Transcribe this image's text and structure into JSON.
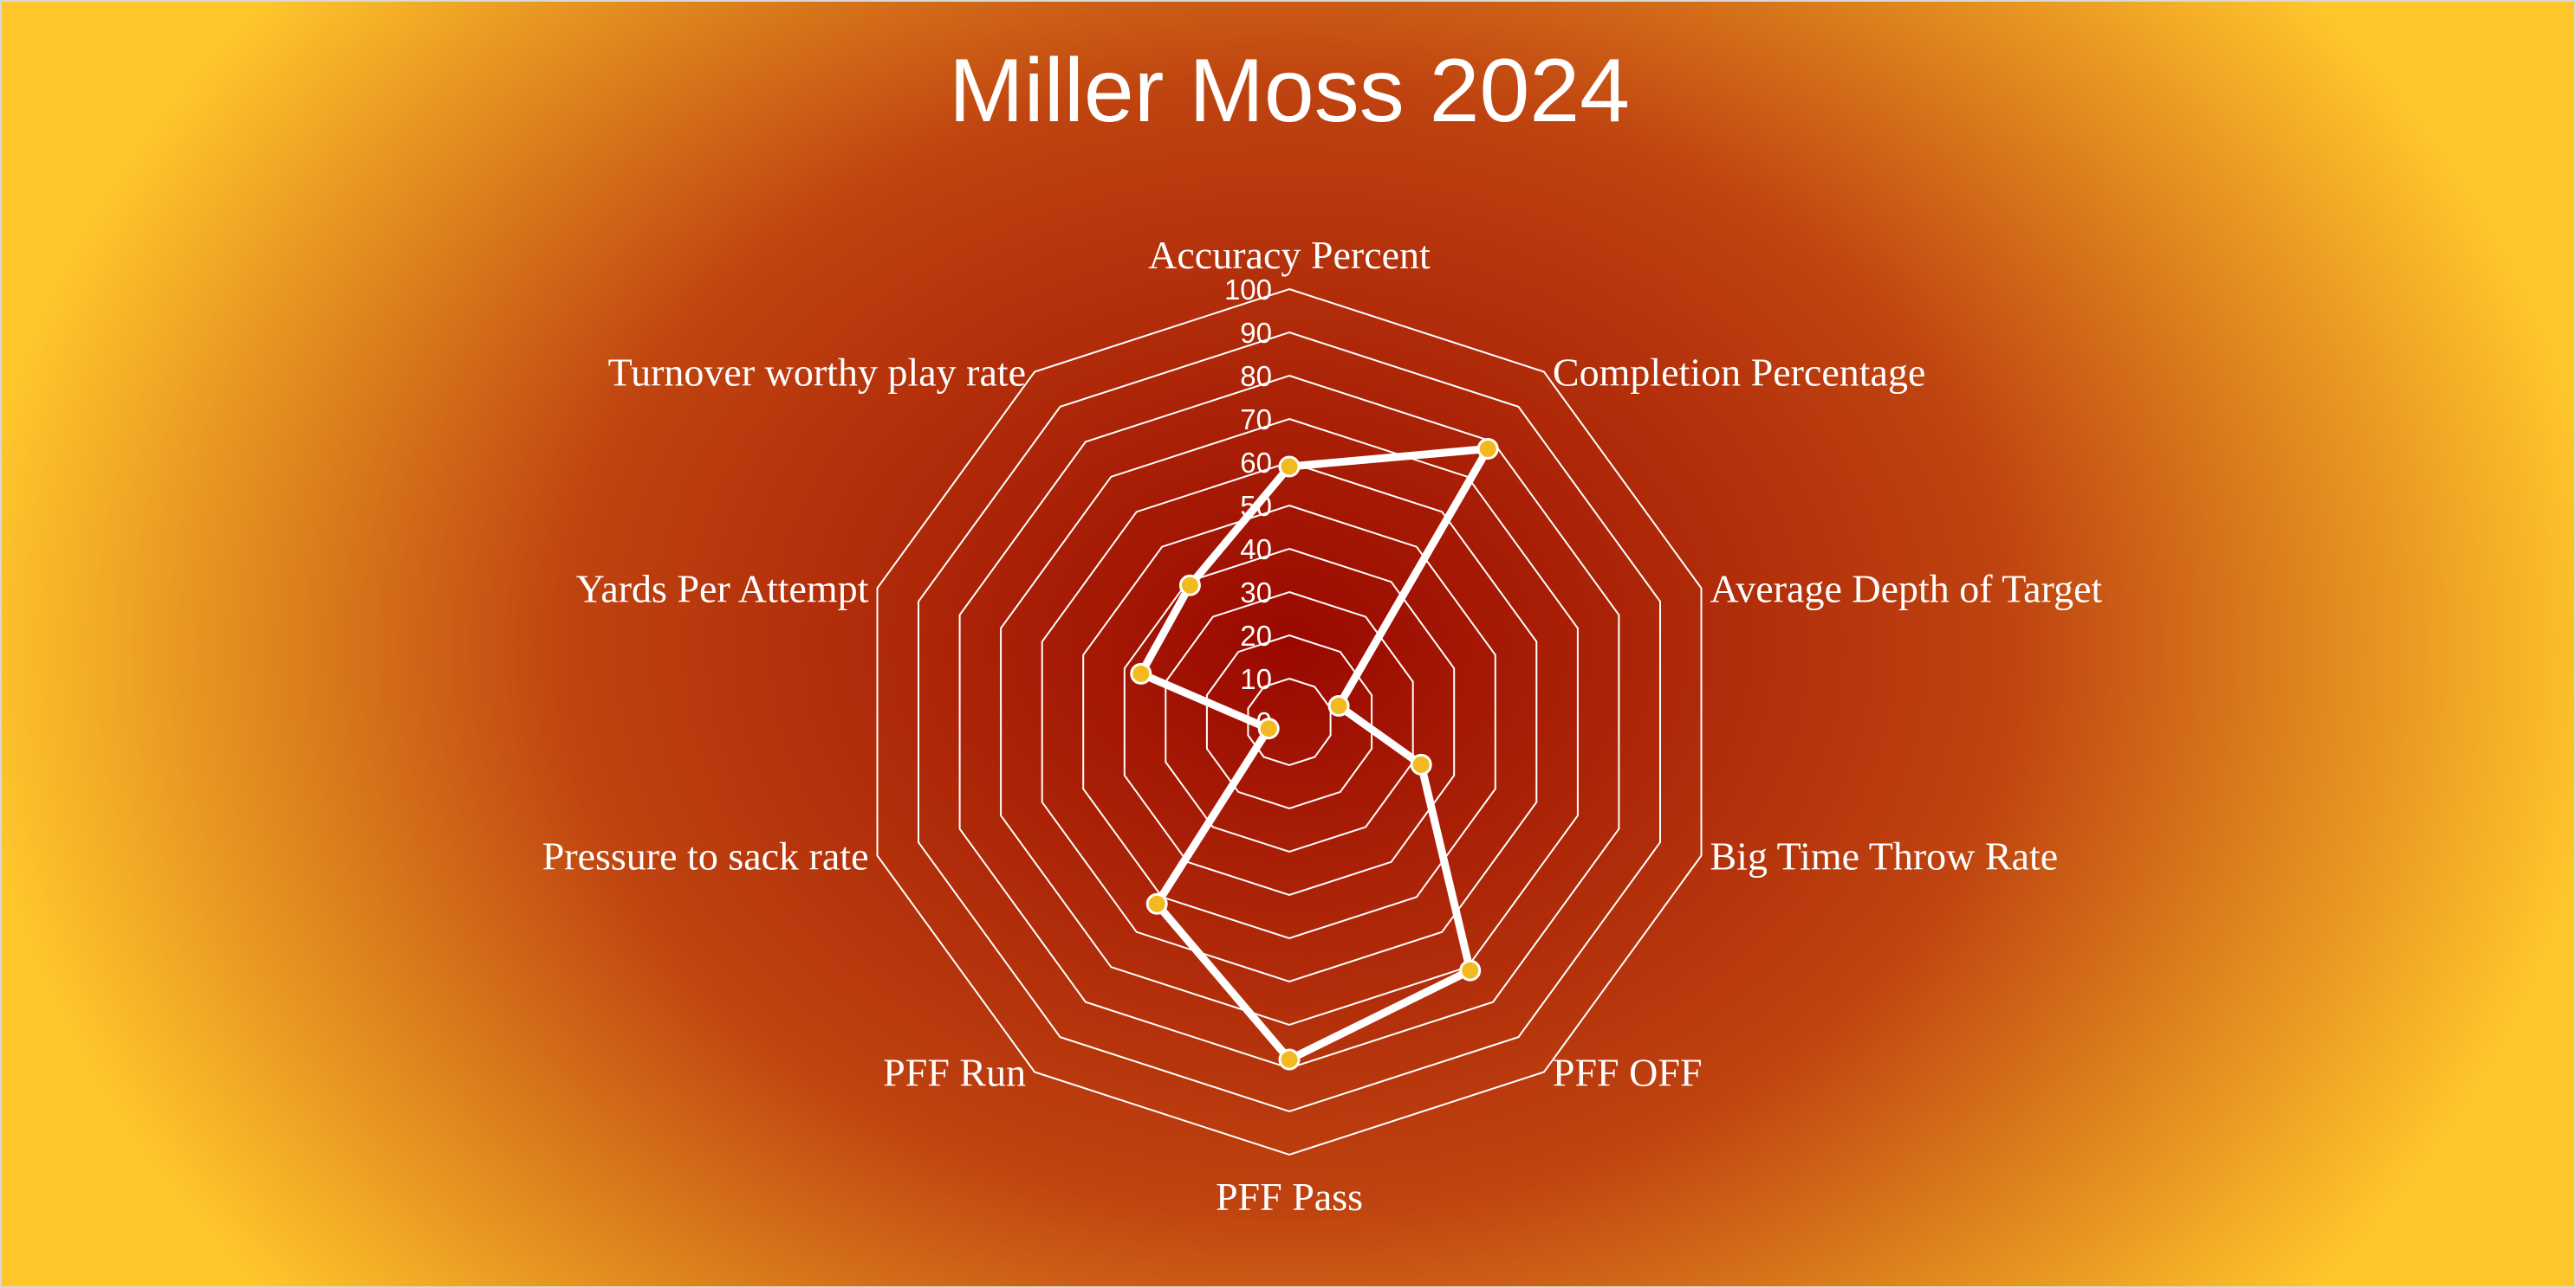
{
  "chart_data": {
    "type": "radar",
    "title": "Miller Moss 2024",
    "axes": [
      "Accuracy Percent",
      "Completion Percentage",
      "Average Depth of Target",
      "Big Time Throw Rate",
      "PFF OFF",
      "PFF Pass",
      "PFF Run",
      "Pressure to sack rate",
      "Yards Per Attempt",
      "Turnover worthy play rate"
    ],
    "ticks": [
      "0",
      "10",
      "20",
      "30",
      "40",
      "50",
      "60",
      "70",
      "80",
      "90",
      "100"
    ],
    "rlim": [
      0,
      100
    ],
    "grid": true,
    "series": [
      {
        "values": [
          59,
          78,
          12,
          32,
          71,
          78,
          52,
          5,
          36,
          39
        ]
      }
    ],
    "colors": {
      "line": "#ffffff",
      "marker": "#f4b91e",
      "grid": "#ffffff",
      "bg_center": "#9a0800",
      "bg_mid": "#bf4410",
      "bg_edge": "#ffc62c"
    }
  }
}
